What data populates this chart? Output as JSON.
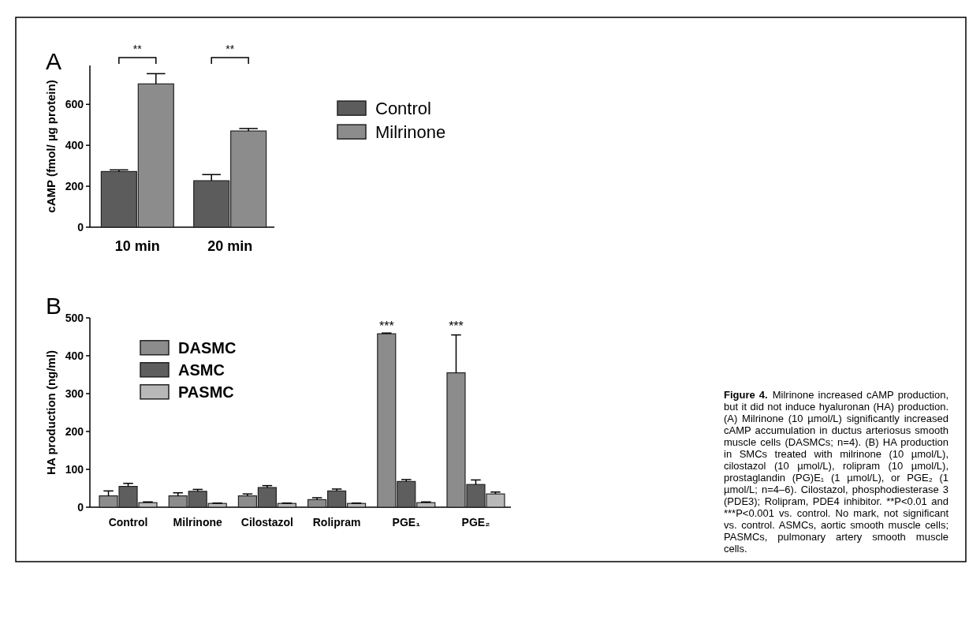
{
  "chart_data": [
    {
      "type": "bar",
      "title": "A",
      "ylabel": "cAMP (fmol/ µg protein)",
      "categories": [
        "10 min",
        "20 min"
      ],
      "ylim": [
        0,
        790
      ],
      "yticks": [
        0,
        200,
        400,
        600
      ],
      "legend": "right",
      "series": [
        {
          "name": "Control",
          "color": "#5c5c5c",
          "values": [
            272,
            227
          ],
          "errors": [
            8,
            30
          ]
        },
        {
          "name": "Milrinone",
          "color": "#8c8c8c",
          "values": [
            700,
            470
          ],
          "errors": [
            50,
            12
          ]
        }
      ],
      "annotations": [
        "**",
        "**"
      ]
    },
    {
      "type": "bar",
      "title": "B",
      "ylabel": "HA production (ng/ml)",
      "categories": [
        "Control",
        "Milrinone",
        "Cilostazol",
        "Rolipram",
        "PGE₁",
        "PGE₂"
      ],
      "ylim": [
        0,
        500
      ],
      "yticks": [
        0,
        100,
        200,
        300,
        400,
        500
      ],
      "legend": "top left",
      "series": [
        {
          "name": "DASMC",
          "color": "#8c8c8c",
          "values": [
            30,
            30,
            30,
            20,
            458,
            355
          ],
          "errors": [
            13,
            8,
            5,
            5,
            2,
            100
          ]
        },
        {
          "name": "ASMC",
          "color": "#5e5e5e",
          "values": [
            55,
            42,
            52,
            43,
            68,
            60
          ],
          "errors": [
            8,
            5,
            5,
            5,
            5,
            12
          ]
        },
        {
          "name": "PASMC",
          "color": "#b8b8b8",
          "values": [
            12,
            10,
            10,
            10,
            12,
            35
          ],
          "errors": [
            2,
            1,
            1,
            1,
            2,
            5
          ]
        }
      ],
      "annotations": [
        "***",
        "***",
        "Figure 4.",
        "Milrinone increased cAMP production, but it did not induce hyaluronan (HA) production. (A) Milrinone (10 µmol/L) significantly increased cAMP accumulation in ductus arteriosus smooth muscle cells (DASMCs; n=4). (B) HA production in SMCs treated with milrinone (10 µmol/L), cilostazol (10 µmol/L), rolipram (10 µmol/L), prostaglandin (PG)E₁ (1 µmol/L), or PGE₂ (1 µmol/L; n=4–6). Cilostazol, phosphodiesterase 3 (PDE3); Rolipram, PDE4 inhibitor. **P<0.01 and ***P<0.001 vs. control. No mark, not significant vs. control. ASMCs, aortic smooth muscle cells; PASMCs, pulmonary artery smooth muscle cells."
      ]
    }
  ]
}
